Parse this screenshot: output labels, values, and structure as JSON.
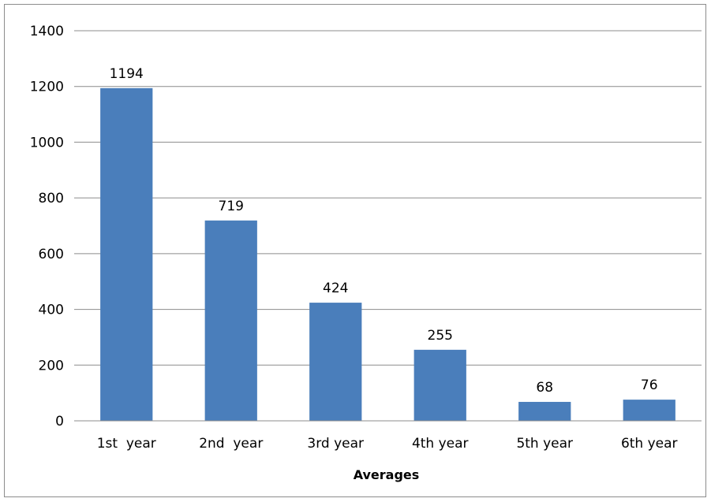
{
  "chart_data": {
    "type": "bar",
    "categories": [
      "1st  year",
      "2nd  year",
      "3rd year",
      "4th year",
      "5th year",
      "6th year"
    ],
    "values": [
      1194,
      719,
      424,
      255,
      68,
      76
    ],
    "data_labels": [
      "1194",
      "719",
      "424",
      "255",
      "68",
      "76"
    ],
    "title": "",
    "xlabel": "Averages",
    "ylabel": "",
    "ylim": [
      0,
      1400
    ],
    "yticks": [
      0,
      200,
      400,
      600,
      800,
      1000,
      1200,
      1400
    ],
    "ytick_labels": [
      "0",
      "200",
      "400",
      "600",
      "800",
      "1000",
      "1200",
      "1400"
    ],
    "grid": true,
    "legend": "none",
    "bar_color": "#4a7ebb",
    "gridline_color": "#8c8c8c"
  }
}
